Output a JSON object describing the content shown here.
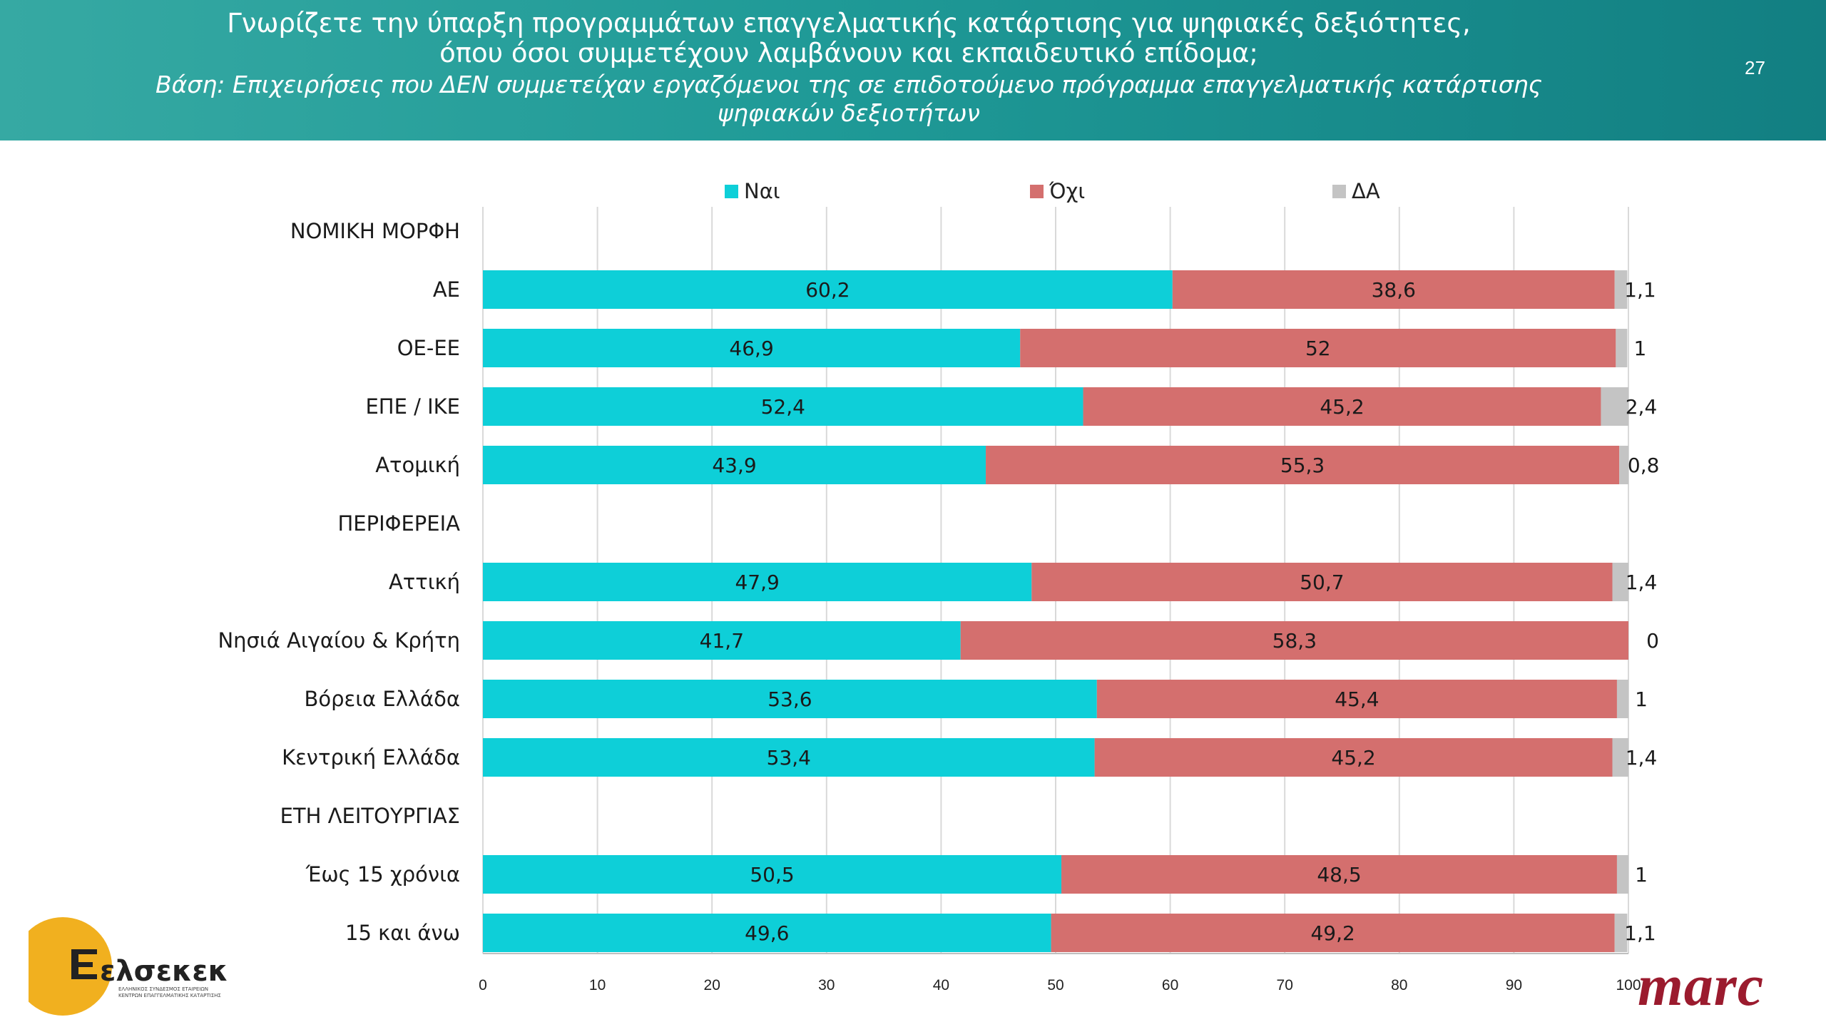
{
  "header": {
    "title_line1": "Γνωρίζετε την ύπαρξη προγραμμάτων επαγγελματικής κατάρτισης για ψηφιακές δεξιότητες,",
    "title_line2": "όπου όσοι συμμετέχουν λαμβάνουν και εκπαιδευτικό επίδομα;",
    "subtitle_line1": "Βάση: Επιχειρήσεις που ΔΕΝ συμμετείχαν εργαζόμενοι της σε επιδοτούμενο πρόγραμμα επαγγελματικής κατάρτισης",
    "subtitle_line2": "ψηφιακών δεξιοτήτων",
    "page_number": "27"
  },
  "logos": {
    "elsekek_wordmark": "ελσεκεκ",
    "elsekek_tagline_1": "ΕΛΛΗΝΙΚΟΣ ΣΥΝΔΕΣΜΟΣ ΕΤΑΙΡΕΙΩΝ",
    "elsekek_tagline_2": "ΚΕΝΤΡΩΝ ΕΠΑΓΓΕΛΜΑΤΙΚΗΣ ΚΑΤΑΡΤΙΣΗΣ",
    "marc": "marc"
  },
  "chart_data": {
    "type": "bar",
    "orientation": "horizontal",
    "stacked": true,
    "title": "",
    "xlabel": "",
    "ylabel": "",
    "xlim": [
      0,
      100
    ],
    "x_ticks": [
      "0",
      "10",
      "20",
      "30",
      "40",
      "50",
      "60",
      "70",
      "80",
      "90",
      "100"
    ],
    "grid": true,
    "legend_position": "top",
    "categories": [
      "ΝΟΜΙΚΗ ΜΟΡΦΗ",
      "ΑΕ",
      "ΟΕ-ΕΕ",
      "ΕΠΕ / ΙΚΕ",
      "Ατομική",
      "ΠΕΡΙΦΕΡΕΙΑ",
      "Αττική",
      "Νησιά Αιγαίου & Κρήτη",
      "Βόρεια Ελλάδα",
      "Κεντρική Ελλάδα",
      "ΕΤΗ ΛΕΙΤΟΥΡΓΙΑΣ",
      "Έως 15 χρόνια",
      "15 και άνω"
    ],
    "series": [
      {
        "name": "Ναι",
        "color": "#0ecfd8",
        "values": [
          null,
          60.2,
          46.9,
          52.4,
          43.9,
          null,
          47.9,
          41.7,
          53.6,
          53.4,
          null,
          50.5,
          49.6
        ],
        "labels": [
          "",
          "60,2",
          "46,9",
          "52,4",
          "43,9",
          "",
          "47,9",
          "41,7",
          "53,6",
          "53,4",
          "",
          "50,5",
          "49,6"
        ]
      },
      {
        "name": "Όχι",
        "color": "#d46f6e",
        "values": [
          null,
          38.6,
          52,
          45.2,
          55.3,
          null,
          50.7,
          58.3,
          45.4,
          45.2,
          null,
          48.5,
          49.2
        ],
        "labels": [
          "",
          "38,6",
          "52",
          "45,2",
          "55,3",
          "",
          "50,7",
          "58,3",
          "45,4",
          "45,2",
          "",
          "48,5",
          "49,2"
        ]
      },
      {
        "name": "ΔΑ",
        "color": "#c4c4c4",
        "values": [
          null,
          1.1,
          1,
          2.4,
          0.8,
          null,
          1.4,
          0,
          1,
          1.4,
          null,
          1,
          1.1
        ],
        "labels": [
          "",
          "1,1",
          "1",
          "2,4",
          "0,8",
          "",
          "1,4",
          "0",
          "1",
          "1,4",
          "",
          "1",
          "1,1"
        ]
      }
    ]
  }
}
